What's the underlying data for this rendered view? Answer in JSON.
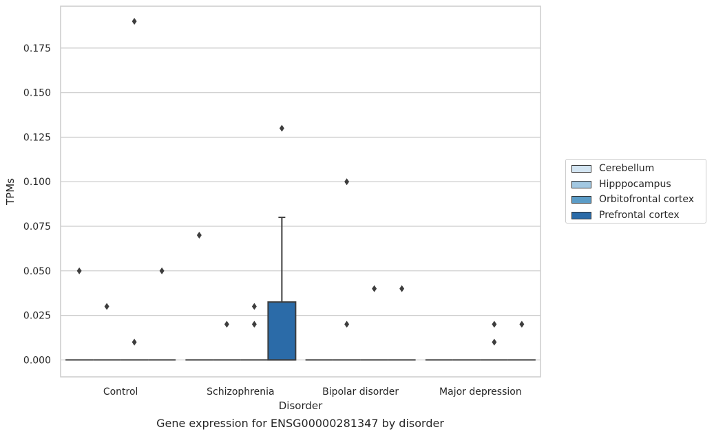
{
  "chart_data": {
    "type": "box",
    "title": "",
    "xlabel": "Disorder",
    "ylabel": "TPMs",
    "ylim": [
      -0.0095,
      0.1985
    ],
    "y_ticks": [
      "0.000",
      "0.025",
      "0.050",
      "0.075",
      "0.100",
      "0.125",
      "0.150",
      "0.175"
    ],
    "y_tick_values": [
      0,
      0.025,
      0.05,
      0.075,
      0.1,
      0.125,
      0.15,
      0.175
    ],
    "grid": "horizontal",
    "legend_position": "right",
    "categories": [
      "Control",
      "Schizophrenia",
      "Bipolar disorder",
      "Major depression"
    ],
    "series": [
      {
        "name": "Cerebellum",
        "color": "#d3e5f2",
        "boxes": [
          {
            "q1": 0,
            "median": 0,
            "q3": 0,
            "whisker_low": 0,
            "whisker_high": 0,
            "outliers": [
              0.05
            ]
          },
          {
            "q1": 0,
            "median": 0,
            "q3": 0,
            "whisker_low": 0,
            "whisker_high": 0,
            "outliers": [
              0.07
            ]
          },
          {
            "q1": 0,
            "median": 0,
            "q3": 0,
            "whisker_low": 0,
            "whisker_high": 0,
            "outliers": []
          },
          {
            "q1": 0,
            "median": 0,
            "q3": 0,
            "whisker_low": 0,
            "whisker_high": 0,
            "outliers": []
          }
        ]
      },
      {
        "name": "Hipppocampus",
        "color": "#a2c8e2",
        "boxes": [
          {
            "q1": 0,
            "median": 0,
            "q3": 0,
            "whisker_low": 0,
            "whisker_high": 0,
            "outliers": [
              0.03
            ]
          },
          {
            "q1": 0,
            "median": 0,
            "q3": 0,
            "whisker_low": 0,
            "whisker_high": 0,
            "outliers": [
              0.02
            ]
          },
          {
            "q1": 0,
            "median": 0,
            "q3": 0,
            "whisker_low": 0,
            "whisker_high": 0,
            "outliers": [
              0.1,
              0.02
            ]
          },
          {
            "q1": 0,
            "median": 0,
            "q3": 0,
            "whisker_low": 0,
            "whisker_high": 0,
            "outliers": []
          }
        ]
      },
      {
        "name": "Orbitofrontal cortex",
        "color": "#5b9cc7",
        "boxes": [
          {
            "q1": 0,
            "median": 0,
            "q3": 0,
            "whisker_low": 0,
            "whisker_high": 0,
            "outliers": [
              0.19,
              0.01
            ]
          },
          {
            "q1": 0,
            "median": 0,
            "q3": 0,
            "whisker_low": 0,
            "whisker_high": 0,
            "outliers": [
              0.03,
              0.02
            ]
          },
          {
            "q1": 0,
            "median": 0,
            "q3": 0,
            "whisker_low": 0,
            "whisker_high": 0,
            "outliers": [
              0.04
            ]
          },
          {
            "q1": 0,
            "median": 0,
            "q3": 0,
            "whisker_low": 0,
            "whisker_high": 0,
            "outliers": [
              0.02,
              0.01
            ]
          }
        ]
      },
      {
        "name": "Prefrontal cortex",
        "color": "#2b6ba8",
        "boxes": [
          {
            "q1": 0,
            "median": 0,
            "q3": 0,
            "whisker_low": 0,
            "whisker_high": 0,
            "outliers": [
              0.05
            ]
          },
          {
            "q1": 0,
            "median": 0,
            "q3": 0.0325,
            "whisker_low": 0,
            "whisker_high": 0.08,
            "outliers": [
              0.13
            ]
          },
          {
            "q1": 0,
            "median": 0,
            "q3": 0,
            "whisker_low": 0,
            "whisker_high": 0,
            "outliers": [
              0.04
            ]
          },
          {
            "q1": 0,
            "median": 0,
            "q3": 0,
            "whisker_low": 0,
            "whisker_high": 0,
            "outliers": [
              0.02
            ]
          }
        ]
      }
    ],
    "box_fill_override": {
      "1-2": "#5b93c1"
    },
    "caption": "Gene expression for ENSG00000281347 by disorder"
  }
}
